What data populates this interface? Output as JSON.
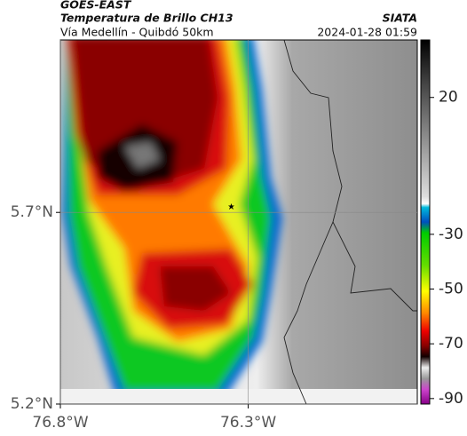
{
  "header": {
    "satellite": "GOES-EAST",
    "product": "Temperatura de Brillo CH13",
    "location": "Vía Medellín - Quibdó 50km",
    "source": "SIATA",
    "datetime": "2024-01-28 01:59"
  },
  "map": {
    "xlim": [
      -76.8,
      -75.85
    ],
    "ylim": [
      5.2,
      6.15
    ],
    "xticks": [
      {
        "value": -76.8,
        "label": "76.8°W"
      },
      {
        "value": -76.3,
        "label": "76.3°W"
      }
    ],
    "yticks": [
      {
        "value": 5.2,
        "label": "5.2°N"
      },
      {
        "value": 5.7,
        "label": "5.7°N"
      }
    ],
    "grid": true
  },
  "colorbar": {
    "lim": [
      -92,
      41
    ],
    "ticks": [
      20,
      -30,
      -50,
      -70,
      -90
    ]
  }
}
